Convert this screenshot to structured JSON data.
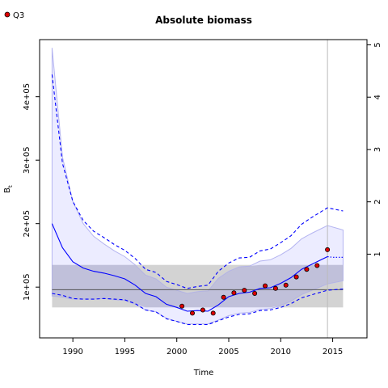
{
  "chart_data": {
    "type": "line",
    "title": "Absolute biomass",
    "xlabel": "Time",
    "ylabel": "B",
    "ylabel_subscript": "t",
    "xlim": [
      1986.8,
      2018.3
    ],
    "ylim": [
      20000,
      490000
    ],
    "right_ylim": [
      -0.6,
      5.1
    ],
    "x_ticks": [
      1990,
      1995,
      2000,
      2005,
      2010,
      2015
    ],
    "x_tick_labels": [
      "1990",
      "1995",
      "2000",
      "2005",
      "2010",
      "2015"
    ],
    "y_ticks": [
      100000,
      200000,
      300000,
      400000
    ],
    "y_tick_labels": [
      "1e+05",
      "2e+05",
      "3e+05",
      "4e+05"
    ],
    "right_ticks": [
      1,
      2,
      3,
      4,
      5
    ],
    "right_tick_labels": [
      "1",
      "2",
      "3",
      "4",
      "5"
    ],
    "grid": false,
    "legend": {
      "position": "top-left",
      "entries": [
        {
          "label": "Q3",
          "color": "#ff0000"
        }
      ]
    },
    "colors": {
      "median": "#0000ff",
      "ci_band": "#e6e6ff",
      "ci_band_edge": "#b4b4f0",
      "reference_band": "#d3d3d3",
      "reference_band_dark": "#b4b4d2",
      "reference_line": "#555555",
      "vertical_line": "#bbbbbb",
      "observation_fill": "#dd0000"
    },
    "reference_band": [
      68000,
      135000
    ],
    "reference_line": 96000,
    "vertical_line_x": 2014.5,
    "prediction_start_x": 2014.5,
    "series": [
      {
        "name": "median",
        "style": "solid",
        "x": [
          1988,
          1989,
          1990,
          1991,
          1992,
          1993,
          1994,
          1995,
          1996,
          1997,
          1998,
          1999,
          2000,
          2001,
          2002,
          2003,
          2004,
          2005,
          2006,
          2007,
          2008,
          2009,
          2010,
          2011,
          2012,
          2013,
          2014.5
        ],
        "y": [
          200000,
          162000,
          140000,
          130000,
          125000,
          122000,
          118000,
          113000,
          103000,
          90000,
          85000,
          73000,
          68000,
          62000,
          63000,
          62000,
          72000,
          85000,
          90000,
          92000,
          98000,
          99000,
          106000,
          115000,
          128000,
          136000,
          148000
        ]
      },
      {
        "name": "median_prediction",
        "style": "dotted",
        "x": [
          2014.5,
          2015,
          2016
        ],
        "y": [
          148000,
          147000,
          147000
        ]
      },
      {
        "name": "upper_95",
        "style": "dashed",
        "x": [
          1988,
          1989,
          1990,
          1991,
          1992,
          1993,
          1994,
          1995,
          1996,
          1997,
          1998,
          1999,
          2000,
          2001,
          2002,
          2003,
          2004,
          2005,
          2006,
          2007,
          2008,
          2009,
          2010,
          2011,
          2012,
          2013,
          2014.5,
          2016
        ],
        "y": [
          435000,
          295000,
          235000,
          205000,
          188000,
          178000,
          167000,
          158000,
          145000,
          128000,
          123000,
          109000,
          104000,
          98000,
          101000,
          103000,
          125000,
          138000,
          146000,
          147000,
          157000,
          160000,
          170000,
          181000,
          199000,
          210000,
          225000,
          220000
        ]
      },
      {
        "name": "lower_95",
        "style": "dashed",
        "x": [
          1988,
          1989,
          1990,
          1991,
          1992,
          1993,
          1994,
          1995,
          1996,
          1997,
          1998,
          1999,
          2000,
          2001,
          2002,
          2003,
          2004,
          2005,
          2006,
          2007,
          2008,
          2009,
          2010,
          2011,
          2012,
          2013,
          2014.5,
          2016
        ],
        "y": [
          90000,
          87000,
          82000,
          81000,
          81000,
          82000,
          81000,
          80000,
          74000,
          64000,
          61000,
          50000,
          46000,
          41000,
          41000,
          41000,
          47000,
          53000,
          57000,
          58000,
          63000,
          64000,
          68000,
          74000,
          83000,
          88000,
          95000,
          97000
        ]
      },
      {
        "name": "observations_Q3",
        "style": "points",
        "x": [
          2000.5,
          2001.5,
          2002.5,
          2003.5,
          2004.5,
          2005.5,
          2006.5,
          2007.5,
          2008.5,
          2009.5,
          2010.5,
          2011.5,
          2012.5,
          2013.5,
          2014.5
        ],
        "y": [
          70000,
          59000,
          64000,
          59000,
          84000,
          91000,
          95000,
          90000,
          102000,
          98000,
          103000,
          116000,
          128000,
          134000,
          159000
        ]
      }
    ],
    "ci_band": {
      "x": [
        1988,
        1989,
        1990,
        1991,
        1992,
        1993,
        1994,
        1995,
        1996,
        1997,
        1998,
        1999,
        2000,
        2001,
        2002,
        2003,
        2004,
        2005,
        2006,
        2007,
        2008,
        2009,
        2010,
        2011,
        2012,
        2013,
        2014.5,
        2016
      ],
      "upper": [
        477000,
        305000,
        235000,
        200000,
        180000,
        168000,
        157000,
        148000,
        135000,
        119000,
        113000,
        100000,
        95000,
        90000,
        93000,
        94000,
        114000,
        125000,
        132000,
        133000,
        141000,
        143000,
        151000,
        161000,
        176000,
        185000,
        197000,
        190000
      ],
      "lower": [
        86000,
        84000,
        81000,
        81000,
        81000,
        82000,
        80000,
        79000,
        73000,
        64000,
        61000,
        51000,
        46000,
        42000,
        42000,
        42000,
        48000,
        55000,
        59000,
        60000,
        65000,
        66000,
        71000,
        78000,
        88000,
        95000,
        105000,
        110000
      ]
    }
  }
}
